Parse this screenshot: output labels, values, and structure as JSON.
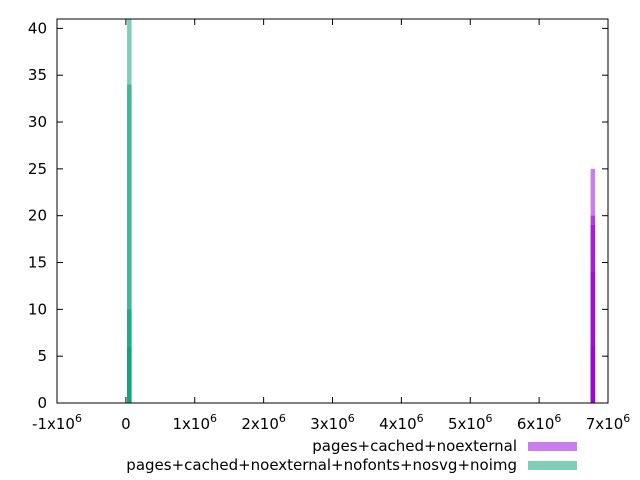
{
  "chart_data": {
    "type": "bar",
    "title": "",
    "xlabel": "",
    "ylabel": "",
    "xlim": [
      -1000000,
      7000000
    ],
    "ylim": [
      0,
      41
    ],
    "grid": false,
    "legend_position": "bottom-right",
    "x_ticks": [
      {
        "value": -1000000,
        "label": "-1x10",
        "exp": "6"
      },
      {
        "value": 0,
        "label": "0",
        "exp": ""
      },
      {
        "value": 1000000,
        "label": "1x10",
        "exp": "6"
      },
      {
        "value": 2000000,
        "label": "2x10",
        "exp": "6"
      },
      {
        "value": 3000000,
        "label": "3x10",
        "exp": "6"
      },
      {
        "value": 4000000,
        "label": "4x10",
        "exp": "6"
      },
      {
        "value": 5000000,
        "label": "5x10",
        "exp": "6"
      },
      {
        "value": 6000000,
        "label": "6x10",
        "exp": "6"
      },
      {
        "value": 7000000,
        "label": "7x10",
        "exp": "6"
      }
    ],
    "y_ticks": [
      0,
      5,
      10,
      15,
      20,
      25,
      30,
      35,
      40
    ],
    "bar_width": 65000,
    "series": [
      {
        "name": "pages+cached+noexternal",
        "color": "#9400d3",
        "opacity": 0.5,
        "values": [
          {
            "x": 6780000,
            "y": 6
          },
          {
            "x": 6780000,
            "y": 14
          },
          {
            "x": 6780000,
            "y": 19
          },
          {
            "x": 6780000,
            "y": 20
          },
          {
            "x": 6780000,
            "y": 25
          }
        ]
      },
      {
        "name": "pages+cached+noexternal+nofonts+nosvg+noimg",
        "color": "#009e73",
        "opacity": 0.5,
        "values": [
          {
            "x": 50000,
            "y": 6
          },
          {
            "x": 50000,
            "y": 10
          },
          {
            "x": 50000,
            "y": 34
          },
          {
            "x": 50000,
            "y": 41
          }
        ]
      }
    ]
  }
}
